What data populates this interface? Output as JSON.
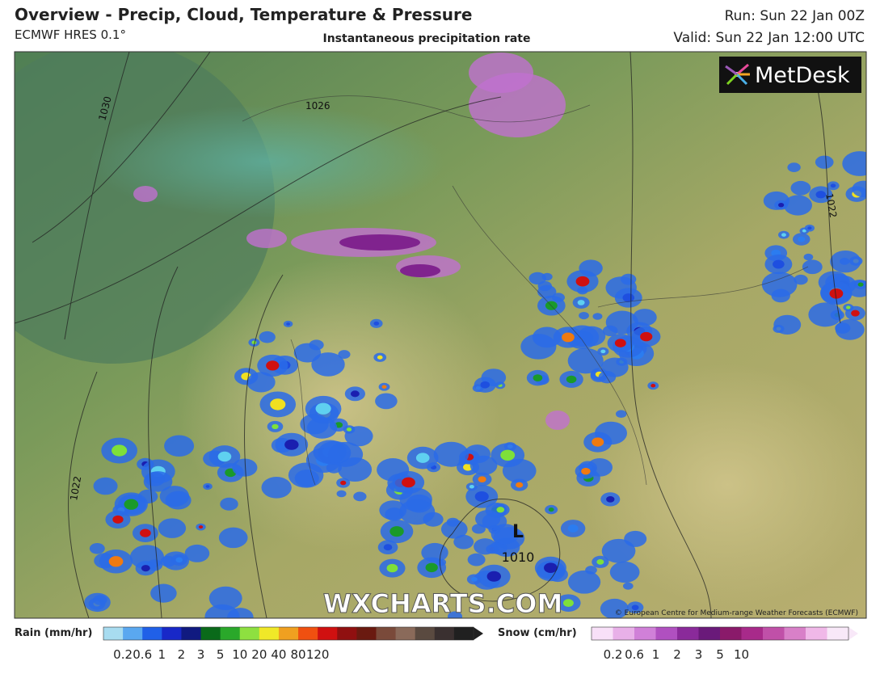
{
  "header": {
    "title": "Overview - Precip, Cloud, Temperature & Pressure",
    "model": "ECMWF HRES 0.1°",
    "subtitle": "Instantaneous precipitation rate",
    "run": "Run: Sun 22 Jan 00Z",
    "valid": "Valid: Sun 22 Jan 12:00 UTC"
  },
  "map": {
    "logo": "MetDesk",
    "watermark": "WXCHARTS.COM",
    "credit": "© European Centre for Medium-range Weather Forecasts (ECMWF)",
    "isobar_labels": [
      1030,
      1026,
      1022,
      1022,
      1010
    ],
    "low_label": "L"
  },
  "legend": {
    "rain_title": "Rain (mm/hr)",
    "rain_labels": [
      0.2,
      0.6,
      1,
      2,
      3,
      5,
      10,
      20,
      40,
      80,
      120
    ],
    "snow_title": "Snow (cm/hr)",
    "snow_labels": [
      0.2,
      0.6,
      1,
      2,
      3,
      5,
      10
    ]
  }
}
